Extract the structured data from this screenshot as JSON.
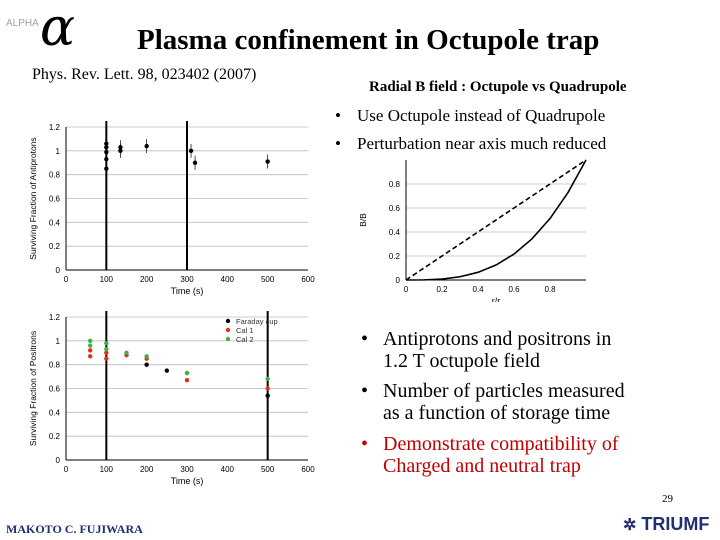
{
  "logo": {
    "text": "ALPHA",
    "symbol": "α"
  },
  "title": "Plasma confinement in Octupole trap",
  "reference": "Phys. Rev. Lett. 98, 023402 (2007)",
  "radial_title": "Radial B field : Octupole vs Quadrupole",
  "bullets_top": [
    "Use Octupole instead of Quadrupole",
    "Perturbation near axis much reduced"
  ],
  "bullets_bottom": [
    {
      "lines": [
        "Antiprotons and positrons in",
        "1.2 T octupole field"
      ],
      "color": "#000000"
    },
    {
      "lines": [
        "Number of particles measured",
        "as a function of storage time"
      ],
      "color": "#000000"
    },
    {
      "lines": [
        "Demonstrate compatibility of",
        "Charged and neutral trap"
      ],
      "color": "#c00000"
    }
  ],
  "footer": {
    "author": "MAKOTO C. FUJIWARA",
    "page": "29",
    "org": "TRIUMF"
  },
  "chart_data": [
    {
      "type": "scatter",
      "ylabel": "Surviving Fraction of Antiprotons",
      "xlabel": "Time (s)",
      "xlim": [
        0,
        600
      ],
      "ylim": [
        0,
        1.2
      ],
      "xticks": [
        0,
        100,
        200,
        300,
        400,
        500,
        600
      ],
      "yticks": [
        0,
        0.2,
        0.4,
        0.6,
        0.8,
        1,
        1.2
      ],
      "vlines": [
        100,
        300
      ],
      "series": [
        {
          "color": "#000000",
          "points": [
            {
              "x": 100,
              "y": 0.85
            },
            {
              "x": 100,
              "y": 0.93
            },
            {
              "x": 100,
              "y": 0.99
            },
            {
              "x": 100,
              "y": 1.03
            },
            {
              "x": 100,
              "y": 1.06
            },
            {
              "x": 135,
              "y": 1.03
            },
            {
              "x": 135,
              "y": 1.0
            },
            {
              "x": 200,
              "y": 1.04
            },
            {
              "x": 310,
              "y": 1.0
            },
            {
              "x": 320,
              "y": 0.9
            },
            {
              "x": 500,
              "y": 0.91
            }
          ]
        }
      ]
    },
    {
      "type": "scatter",
      "ylabel": "Surviving Fraction of Positrons",
      "xlabel": "Time (s)",
      "xlim": [
        0,
        600
      ],
      "ylim": [
        0,
        1.2
      ],
      "xticks": [
        0,
        100,
        200,
        300,
        400,
        500,
        600
      ],
      "yticks": [
        0,
        0.2,
        0.4,
        0.6,
        0.8,
        1,
        1.2
      ],
      "vlines": [
        100,
        500
      ],
      "legend_position": "top-right",
      "series": [
        {
          "name": "Faraday cup",
          "color": "#000000",
          "points": [
            {
              "x": 200,
              "y": 0.8
            },
            {
              "x": 250,
              "y": 0.75
            },
            {
              "x": 500,
              "y": 0.54
            }
          ]
        },
        {
          "name": "Cal 1",
          "color": "#e03020",
          "points": [
            {
              "x": 60,
              "y": 0.87
            },
            {
              "x": 60,
              "y": 0.92
            },
            {
              "x": 100,
              "y": 0.85
            },
            {
              "x": 100,
              "y": 0.9
            },
            {
              "x": 150,
              "y": 0.88
            },
            {
              "x": 200,
              "y": 0.85
            },
            {
              "x": 300,
              "y": 0.67
            },
            {
              "x": 500,
              "y": 0.6
            }
          ]
        },
        {
          "name": "Cal 2",
          "color": "#40b040",
          "points": [
            {
              "x": 60,
              "y": 0.96
            },
            {
              "x": 60,
              "y": 1.0
            },
            {
              "x": 100,
              "y": 0.93
            },
            {
              "x": 100,
              "y": 0.98
            },
            {
              "x": 150,
              "y": 0.9
            },
            {
              "x": 200,
              "y": 0.87
            },
            {
              "x": 300,
              "y": 0.73
            },
            {
              "x": 500,
              "y": 0.68
            }
          ]
        }
      ]
    },
    {
      "type": "line",
      "ylabel": "B/B",
      "xlabel": "r/r",
      "xlim": [
        0,
        1
      ],
      "ylim": [
        0,
        1
      ],
      "xticks": [
        0,
        0.2,
        0.4,
        0.6,
        0.8
      ],
      "yticks": [
        0,
        0.2,
        0.4,
        0.6,
        0.8
      ],
      "series": [
        {
          "style": "dashed",
          "x": [
            0,
            1
          ],
          "y": [
            0,
            1
          ]
        },
        {
          "style": "solid",
          "x": [
            0,
            0.1,
            0.2,
            0.3,
            0.4,
            0.5,
            0.6,
            0.7,
            0.8,
            0.9,
            1
          ],
          "y": [
            0,
            0.001,
            0.008,
            0.027,
            0.064,
            0.125,
            0.216,
            0.343,
            0.512,
            0.729,
            1
          ]
        }
      ]
    }
  ]
}
